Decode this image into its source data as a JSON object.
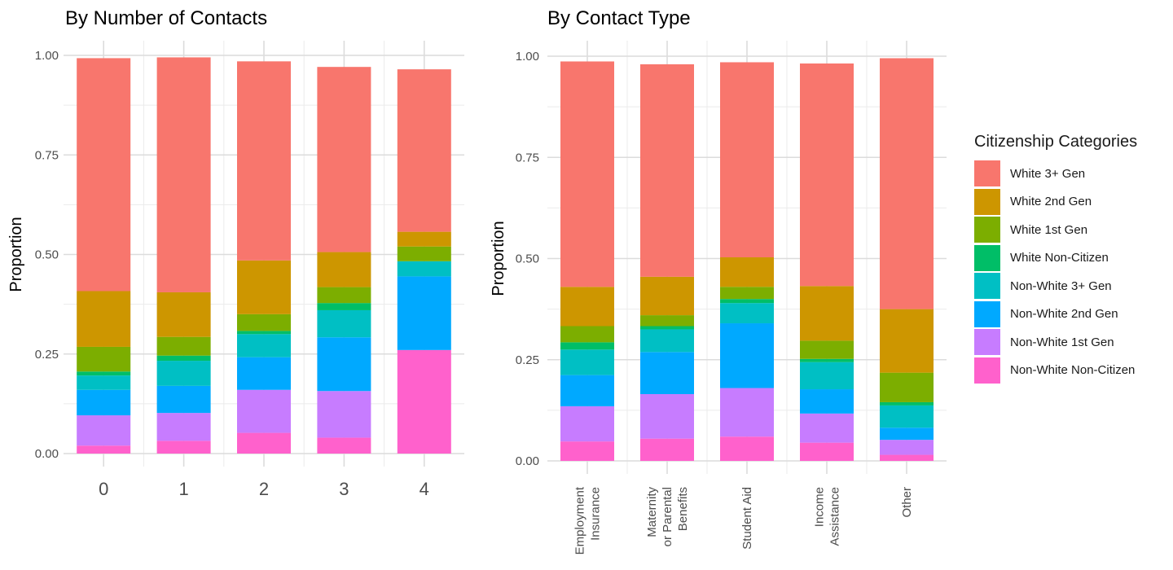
{
  "legend": {
    "title": "Citizenship Categories",
    "items": [
      {
        "label": "White 3+ Gen",
        "color": "#F8766D"
      },
      {
        "label": "White 2nd Gen",
        "color": "#CD9600"
      },
      {
        "label": "White 1st Gen",
        "color": "#7CAE00"
      },
      {
        "label": "White Non-Citizen",
        "color": "#00BE67"
      },
      {
        "label": "Non-White 3+ Gen",
        "color": "#00BFC4"
      },
      {
        "label": "Non-White 2nd Gen",
        "color": "#00A9FF"
      },
      {
        "label": "Non-White 1st Gen",
        "color": "#C77CFF"
      },
      {
        "label": "Non-White Non-Citizen",
        "color": "#FF61CC"
      }
    ]
  },
  "chart_data": [
    {
      "type": "bar",
      "stacked": true,
      "title": "By Number of Contacts",
      "xlabel": "",
      "ylabel": "Proportion",
      "ylim": [
        0,
        1
      ],
      "yticks": [
        "0.00",
        "0.25",
        "0.50",
        "0.75",
        "1.00"
      ],
      "categories": [
        "0",
        "1",
        "2",
        "3",
        "4"
      ],
      "series": [
        {
          "name": "Non-White Non-Citizen",
          "values": [
            0.02,
            0.032,
            0.052,
            0.04,
            0.26
          ]
        },
        {
          "name": "Non-White 1st Gen",
          "values": [
            0.076,
            0.07,
            0.108,
            0.117,
            0.0
          ]
        },
        {
          "name": "Non-White 2nd Gen",
          "values": [
            0.064,
            0.068,
            0.082,
            0.135,
            0.185
          ]
        },
        {
          "name": "Non-White 3+ Gen",
          "values": [
            0.036,
            0.063,
            0.058,
            0.068,
            0.038
          ]
        },
        {
          "name": "White Non-Citizen",
          "values": [
            0.01,
            0.013,
            0.008,
            0.018,
            0.0
          ]
        },
        {
          "name": "White 1st Gen",
          "values": [
            0.062,
            0.047,
            0.042,
            0.04,
            0.037
          ]
        },
        {
          "name": "White 2nd Gen",
          "values": [
            0.14,
            0.112,
            0.135,
            0.088,
            0.037
          ]
        },
        {
          "name": "White 3+ Gen",
          "values": [
            0.585,
            0.59,
            0.5,
            0.465,
            0.408
          ]
        }
      ]
    },
    {
      "type": "bar",
      "stacked": true,
      "title": "By Contact Type",
      "xlabel": "",
      "ylabel": "Proportion",
      "ylim": [
        0,
        1
      ],
      "yticks": [
        "0.00",
        "0.25",
        "0.50",
        "0.75",
        "1.00"
      ],
      "categories": [
        [
          "Employment",
          "Insurance"
        ],
        [
          "Maternity",
          "or Parental",
          "Benefits"
        ],
        [
          "Student Aid"
        ],
        [
          "Income",
          "Assistance"
        ],
        [
          "Other"
        ]
      ],
      "series": [
        {
          "name": "Non-White Non-Citizen",
          "values": [
            0.048,
            0.055,
            0.06,
            0.045,
            0.015
          ]
        },
        {
          "name": "Non-White 1st Gen",
          "values": [
            0.087,
            0.11,
            0.12,
            0.072,
            0.037
          ]
        },
        {
          "name": "Non-White 2nd Gen",
          "values": [
            0.077,
            0.104,
            0.16,
            0.06,
            0.03
          ]
        },
        {
          "name": "Non-White 3+ Gen",
          "values": [
            0.063,
            0.056,
            0.05,
            0.067,
            0.055
          ]
        },
        {
          "name": "White Non-Citizen",
          "values": [
            0.018,
            0.008,
            0.01,
            0.008,
            0.008
          ]
        },
        {
          "name": "White 1st Gen",
          "values": [
            0.04,
            0.027,
            0.03,
            0.045,
            0.073
          ]
        },
        {
          "name": "White 2nd Gen",
          "values": [
            0.097,
            0.095,
            0.073,
            0.135,
            0.157
          ]
        },
        {
          "name": "White 3+ Gen",
          "values": [
            0.557,
            0.525,
            0.482,
            0.55,
            0.62
          ]
        }
      ]
    }
  ]
}
